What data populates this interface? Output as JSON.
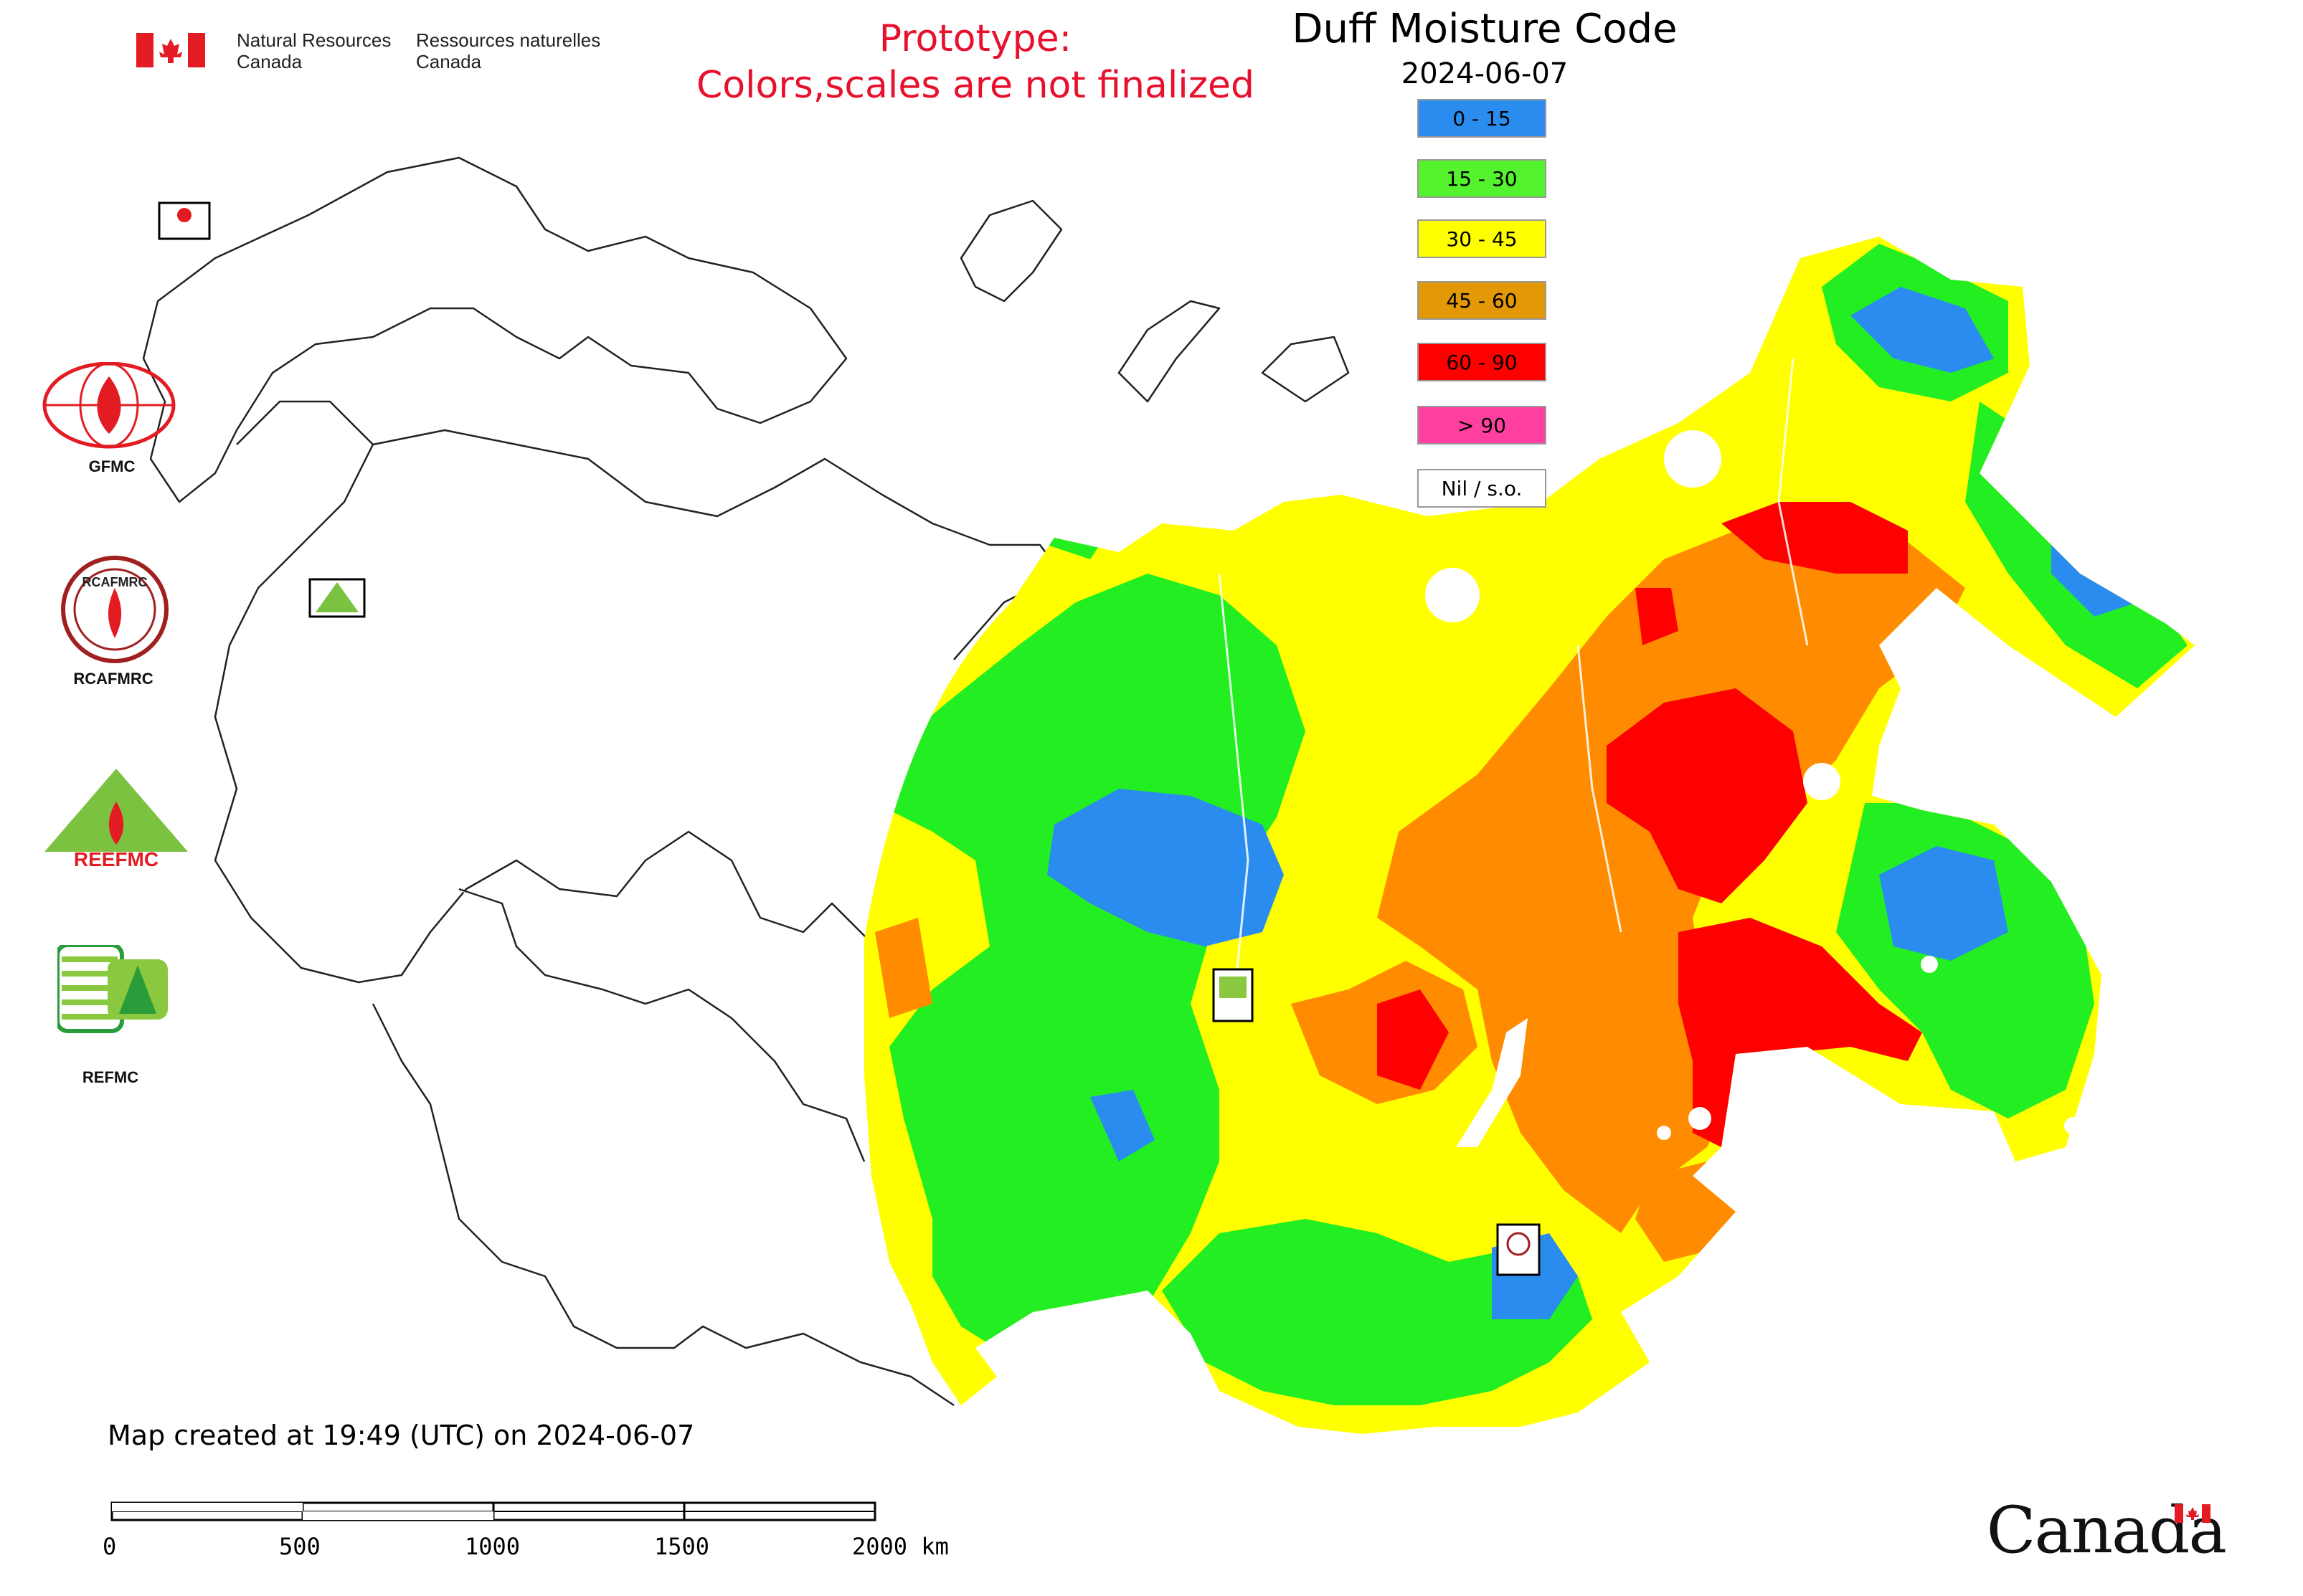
{
  "header": {
    "agency_en": [
      "Natural Resources",
      "Canada"
    ],
    "agency_fr": [
      "Ressources naturelles",
      "Canada"
    ],
    "prototype_line1": "Prototype:",
    "prototype_line2": "Colors,scales are not finalized",
    "title": "Duff Moisture Code",
    "date": "2024-06-07"
  },
  "legend": [
    {
      "label": "0 - 15",
      "color": "#2b8cf0"
    },
    {
      "label": "15 - 30",
      "color": "#55f22e"
    },
    {
      "label": "30 - 45",
      "color": "#ffff00"
    },
    {
      "label": "45 - 60",
      "color": "#e39806"
    },
    {
      "label": "60 - 90",
      "color": "#ff0000"
    },
    {
      "label": "> 90",
      "color": "#ff40a0"
    },
    {
      "label": "Nil / s.o.",
      "color": "#ffffff"
    }
  ],
  "logos": {
    "gfmc": "GFMC",
    "rcafmrc": "RCAFMRC",
    "reefmc": "REEFMC",
    "refmc": "REFMC",
    "rcafmrc_ring_text": "RCAFMRC"
  },
  "footer": {
    "created": "Map created at 19:49 (UTC) on 2024-06-07",
    "scale_labels": [
      "0",
      "500",
      "1000",
      "1500",
      "2000 km"
    ],
    "wordmark": "Canada"
  },
  "colors": {
    "flag_red": "#e31b23",
    "prototype_red": "#e8112d"
  }
}
